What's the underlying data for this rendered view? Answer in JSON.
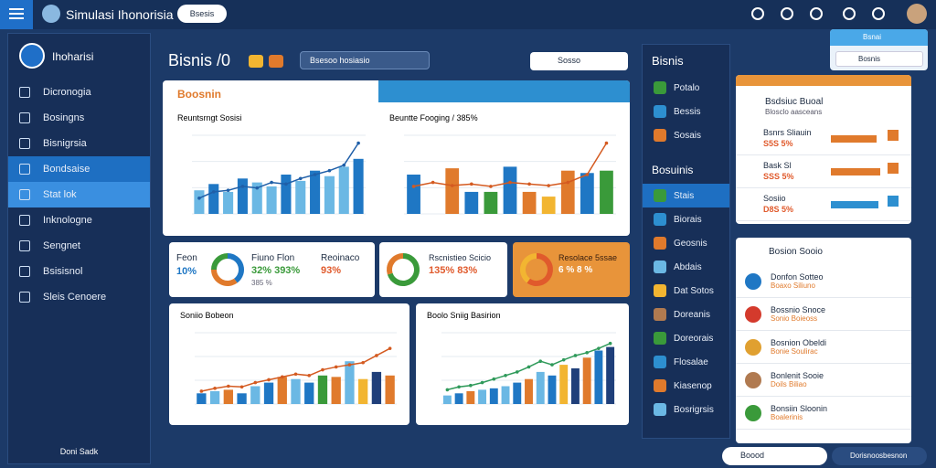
{
  "topbar": {
    "app_title": "Simulasi Ihonorisia",
    "button": "Bsesis"
  },
  "sidebar": {
    "user": "Ihoharisi",
    "items": [
      "Dicronogia",
      "Bosingns",
      "Bisnigrsia",
      "Bondsaise",
      "Stat lok",
      "Inknologne",
      "Sengnet",
      "Bsisisnol",
      "Sleis Cenoere"
    ],
    "footer": "Doni Sadk"
  },
  "header": {
    "title": "Bisnis /0",
    "search": "Bsesoo hosiasio",
    "select": "Sosso"
  },
  "overview": {
    "title": "Boosnin"
  },
  "charts": [
    {
      "title": "Reuntsrngt Sosisi",
      "ylim": [
        0,
        100
      ],
      "bars": [
        30,
        38,
        28,
        45,
        40,
        35,
        50,
        42,
        55,
        48,
        60,
        70
      ],
      "colors": [
        "#6bb8e4",
        "#1f77c4",
        "#6bb8e4",
        "#1f77c4",
        "#6bb8e4",
        "#6bb8e4",
        "#1f77c4",
        "#6bb8e4",
        "#1f77c4",
        "#6bb8e4",
        "#6bb8e4",
        "#1f77c4"
      ],
      "line": [
        20,
        28,
        30,
        35,
        33,
        40,
        38,
        45,
        50,
        55,
        62,
        90
      ],
      "line_color": "#1f5fa8"
    },
    {
      "title": "Beuntte Fooging / 385%",
      "ylim": [
        0,
        100
      ],
      "bars": [
        50,
        0,
        58,
        28,
        28,
        60,
        28,
        22,
        55,
        52,
        55
      ],
      "colors": [
        "#1f77c4",
        "#9aa6b2",
        "#e07a2c",
        "#1f77c4",
        "#3a9a3a",
        "#1f77c4",
        "#e07a2c",
        "#f2b531",
        "#e07a2c",
        "#1f77c4",
        "#3a9a3a"
      ],
      "line": [
        35,
        40,
        36,
        38,
        35,
        40,
        38,
        36,
        40,
        50,
        90
      ],
      "line_color": "#d45a20"
    },
    {
      "title": "Soniio Bobeon",
      "ylim": [
        0,
        100
      ],
      "bars": [
        15,
        18,
        20,
        15,
        25,
        30,
        38,
        35,
        30,
        40,
        38,
        60,
        35,
        45,
        40
      ],
      "colors": [
        "#1f77c4",
        "#6bb8e4",
        "#e07a2c",
        "#1f77c4",
        "#6bb8e4",
        "#1f77c4",
        "#e07a2c",
        "#6bb8e4",
        "#1f77c4",
        "#3a9a3a",
        "#e07a2c",
        "#6bb8e4",
        "#f2b531",
        "#1f3f7a",
        "#e07a2c"
      ],
      "line": [
        18,
        22,
        25,
        24,
        30,
        34,
        38,
        42,
        40,
        48,
        52,
        55,
        58,
        68,
        78
      ],
      "line_color": "#d45a20"
    },
    {
      "title": "Boolo Sniig Basirion",
      "ylim": [
        0,
        100
      ],
      "bars": [
        12,
        15,
        18,
        20,
        22,
        25,
        30,
        35,
        45,
        40,
        55,
        50,
        65,
        75,
        80
      ],
      "colors": [
        "#6bb8e4",
        "#1f77c4",
        "#e07a2c",
        "#6bb8e4",
        "#1f77c4",
        "#6bb8e4",
        "#1f77c4",
        "#e07a2c",
        "#6bb8e4",
        "#1f77c4",
        "#f2b531",
        "#1f3f7a",
        "#e07a2c",
        "#1f77c4",
        "#1f3f7a"
      ],
      "line": [
        20,
        24,
        26,
        30,
        35,
        40,
        45,
        52,
        60,
        55,
        62,
        68,
        72,
        78,
        85
      ],
      "line_color": "#2f9a5a"
    }
  ],
  "kpis": [
    {
      "label": "Feon",
      "value": "10%",
      "donut": [
        40,
        35,
        25
      ],
      "colors": [
        "#1f77c4",
        "#e07a2c",
        "#3a9a3a"
      ],
      "title": "Fiuno Flon",
      "sub": "32% 393%",
      "note": "385 %"
    },
    {
      "label": "Reoinaco",
      "value": "93%"
    },
    {
      "title": "Rscnistieo Scicio",
      "sub": "135% 83%",
      "donut": [
        70,
        30
      ],
      "colors": [
        "#3a9a3a",
        "#e07a2c"
      ]
    },
    {
      "title": "Resolace 5ssae",
      "sub": "6 % 8 %",
      "donut": [
        60,
        40
      ],
      "colors": [
        "#e05a2c",
        "#f2b531"
      ]
    }
  ],
  "right_panel": {
    "title": "Bisnis",
    "items": [
      "Potalo",
      "Bessis",
      "Sosais"
    ],
    "title2": "Bosuinis",
    "items2": [
      "Stais",
      "Biorais",
      "Geosnis",
      "Abdais",
      "Dat Sotos",
      "Doreanis",
      "Doreorais",
      "Flosalae",
      "Kiasenop",
      "Bosrigrsis"
    ]
  },
  "widget": {
    "label": "Bsnai",
    "select": "Bosnis"
  },
  "summary": {
    "title": "Bsdsiuc Buoal",
    "sub": "Blosclo aasceans",
    "rows": [
      {
        "label": "Bsnrs Sliauin",
        "value": "S5S 5%",
        "bar": 55,
        "color": "#e07a2c"
      },
      {
        "label": "Bask Sl",
        "value": "SSS 5%",
        "bar": 60,
        "color": "#e07a2c"
      },
      {
        "label": "Sosiio",
        "value": "D8S 5%",
        "bar": 58,
        "color": "#2d8fd0"
      }
    ]
  },
  "list": {
    "title": "Bosion Sooio",
    "items": [
      {
        "title": "Donfon Sotteo",
        "sub": "Boaxo Siliuno",
        "color": "#1f77c4"
      },
      {
        "title": "Bossnio Snoce",
        "sub": "Sonio Boieoss",
        "color": "#d43a2c"
      },
      {
        "title": "Bosnion Obeldi",
        "sub": "Bonie Soulirac",
        "color": "#e0a030"
      },
      {
        "title": "Bonlenit Sooie",
        "sub": "Doils Biliao",
        "color": "#b07a50"
      },
      {
        "title": "Bonsiin Sloonin",
        "sub": "Boalerinis",
        "color": "#3a9a3a"
      }
    ]
  },
  "bottombar": {
    "search": "Boood",
    "button": "Dorisnoosbesnon"
  }
}
